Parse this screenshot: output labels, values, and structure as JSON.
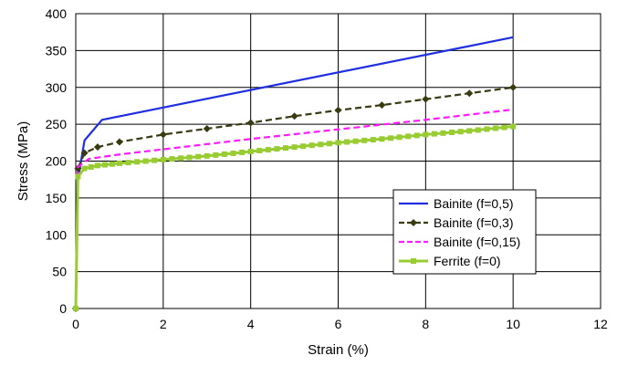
{
  "chart_data": {
    "type": "line",
    "xlabel": "Strain (%)",
    "ylabel": "Stress (MPa)",
    "xlim": [
      0,
      12
    ],
    "ylim": [
      0,
      400
    ],
    "xticks": [
      0,
      2,
      4,
      6,
      8,
      10,
      12
    ],
    "yticks": [
      0,
      50,
      100,
      150,
      200,
      250,
      300,
      350,
      400
    ],
    "grid": true,
    "legend_position": "bottom-right",
    "series": [
      {
        "name": "Bainite (f=0,5)",
        "color": "#1f2fe0",
        "style": "solid",
        "marker": "none",
        "points": [
          [
            0,
            0
          ],
          [
            0.05,
            175
          ],
          [
            0.2,
            228
          ],
          [
            0.6,
            256
          ],
          [
            10,
            368
          ]
        ]
      },
      {
        "name": "Bainite (f=0,3)",
        "color": "#3a3a12",
        "style": "dashed",
        "marker": "diamond",
        "points": [
          [
            0,
            0
          ],
          [
            0.05,
            190
          ],
          [
            0.2,
            211
          ],
          [
            0.5,
            219
          ],
          [
            1,
            226
          ],
          [
            2,
            236
          ],
          [
            3,
            244
          ],
          [
            4,
            252
          ],
          [
            5,
            261
          ],
          [
            6,
            269
          ],
          [
            7,
            276
          ],
          [
            8,
            284
          ],
          [
            9,
            292
          ],
          [
            10,
            300
          ]
        ]
      },
      {
        "name": "Bainite (f=0,15)",
        "color": "#ff1aff",
        "style": "dashed",
        "marker": "none",
        "points": [
          [
            0,
            0
          ],
          [
            0.05,
            192
          ],
          [
            0.3,
            203
          ],
          [
            1,
            209
          ],
          [
            2,
            216
          ],
          [
            4,
            230
          ],
          [
            6,
            243
          ],
          [
            8,
            256
          ],
          [
            10,
            270
          ]
        ]
      },
      {
        "name": "Ferrite (f=0)",
        "color": "#99cc33",
        "style": "solid",
        "marker": "square",
        "points": [
          [
            0,
            0
          ],
          [
            0.05,
            179
          ],
          [
            0.2,
            190
          ],
          [
            0.5,
            194
          ],
          [
            1,
            197
          ],
          [
            2,
            202
          ],
          [
            3,
            207
          ],
          [
            4,
            213
          ],
          [
            5,
            219
          ],
          [
            6,
            225
          ],
          [
            7,
            230
          ],
          [
            8,
            236
          ],
          [
            9,
            241
          ],
          [
            10,
            247
          ]
        ]
      }
    ]
  }
}
